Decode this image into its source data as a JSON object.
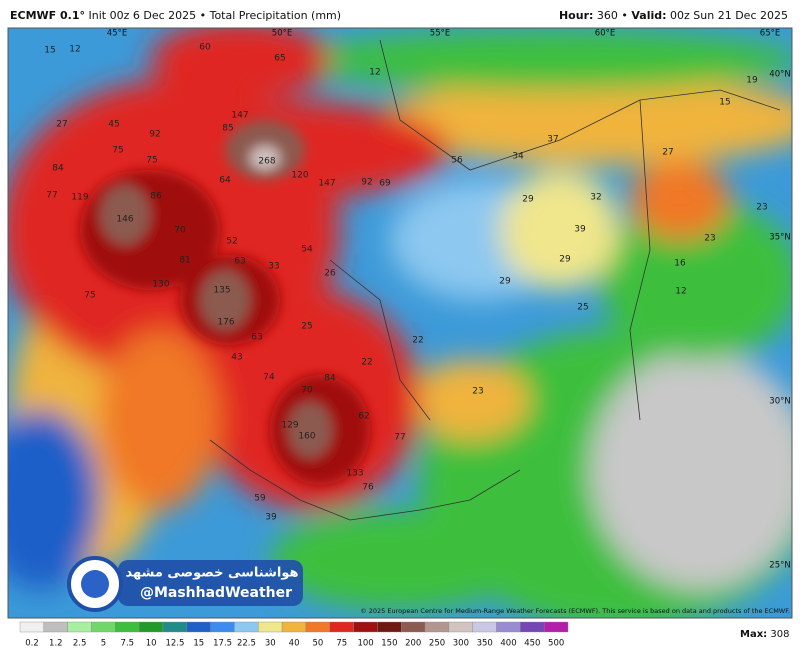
{
  "header": {
    "model": "ECMWF 0.1°",
    "left": "Init 00z 6 Dec 2025 • Total Precipitation (mm)",
    "right_hour": "Hour:",
    "hour": "360",
    "right_valid": "Valid:",
    "valid": "00z Sun 21 Dec 2025"
  },
  "geo_labels": [
    "45°E",
    "50°E",
    "55°E",
    "60°E",
    "65°E",
    "40°N",
    "35°N",
    "30°N",
    "25°N"
  ],
  "map_labels": [
    "60",
    "65",
    "147",
    "85",
    "92",
    "75",
    "75",
    "268",
    "64",
    "86",
    "120",
    "147",
    "92",
    "69",
    "84",
    "77",
    "119",
    "146",
    "70",
    "52",
    "54",
    "81",
    "63",
    "33",
    "26",
    "130",
    "135",
    "75",
    "176",
    "63",
    "25",
    "43",
    "74",
    "84",
    "70",
    "22",
    "62",
    "129",
    "160",
    "77",
    "133",
    "76",
    "59",
    "39",
    "56",
    "34",
    "37",
    "27",
    "29",
    "32",
    "39",
    "29",
    "29",
    "25",
    "22",
    "23",
    "16",
    "12",
    "23",
    "23",
    "15",
    "19",
    "12",
    "15",
    "27",
    "45",
    "12"
  ],
  "copyright": "© 2025 European Centre for Medium-Range Weather Forecasts (ECMWF). This service is based on data and products of the ECMWF.",
  "watermark": {
    "title": "هواشناسی خصوصی مشهد",
    "handle": "@MashhadWeather"
  },
  "legend": {
    "ticks": [
      0.2,
      1.2,
      2.5,
      5,
      7.5,
      10,
      12.5,
      15,
      17.5,
      22.5,
      30,
      40,
      50,
      75,
      100,
      150,
      200,
      250,
      300,
      350,
      400,
      450,
      500
    ],
    "colors": [
      "#f0f0f0",
      "#bfbfbf",
      "#a6f0a0",
      "#6fd868",
      "#3cbf3c",
      "#219a2a",
      "#1f8c8c",
      "#1f5fc8",
      "#3c8cf0",
      "#8cc8f0",
      "#f0e68c",
      "#f0b43c",
      "#f07828",
      "#e02820",
      "#a01010",
      "#6e1a10",
      "#8c5a50",
      "#b49690",
      "#d2c3c0",
      "#c8c8e6",
      "#9a8cd2",
      "#7846b4",
      "#b41eaa"
    ],
    "max_label": "Max:",
    "max_value": 308
  }
}
